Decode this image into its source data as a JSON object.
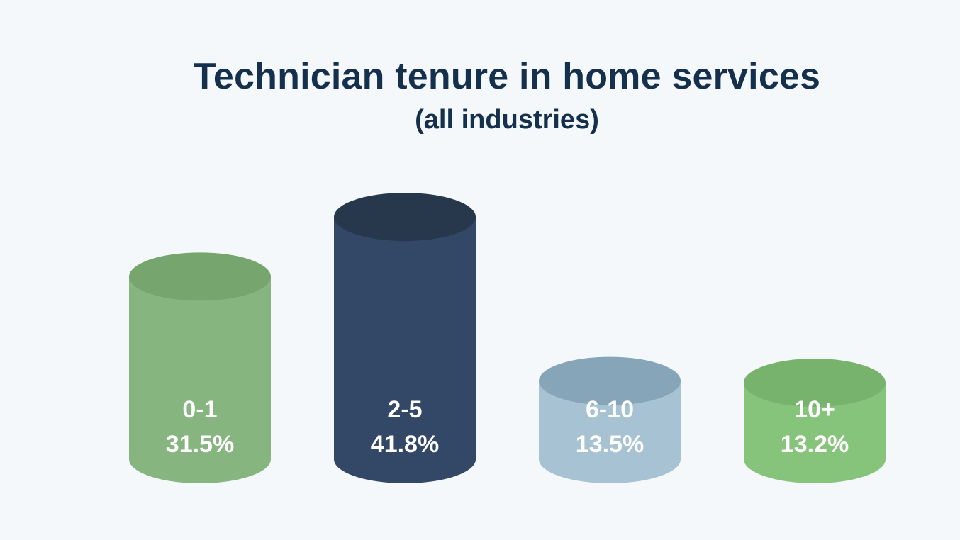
{
  "chart_data": {
    "type": "bar",
    "title": "Technician tenure in home services",
    "subtitle": "(all industries)",
    "categories": [
      "0-1",
      "2-5",
      "6-10",
      "10+"
    ],
    "values": [
      31.5,
      41.8,
      13.5,
      13.2
    ],
    "value_labels": [
      "31.5%",
      "41.8%",
      "13.5%",
      "13.2%"
    ],
    "unit": "%",
    "colors": [
      {
        "body": "#86b57f",
        "top": "#76a66e"
      },
      {
        "body": "#334866",
        "top": "#27374c"
      },
      {
        "body": "#a7c2d2",
        "top": "#86a5b9"
      },
      {
        "body": "#87c47b",
        "top": "#77b36c"
      }
    ],
    "style": "cylinder",
    "grid": false,
    "legend": "none"
  }
}
